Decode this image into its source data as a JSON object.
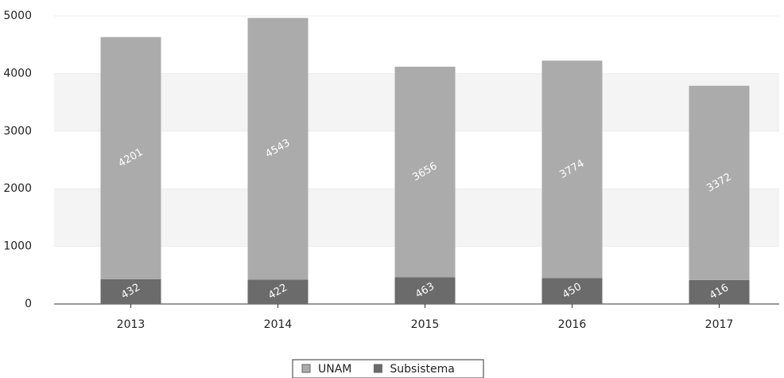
{
  "chart_data": {
    "type": "stacked-bar",
    "categories": [
      "2013",
      "2014",
      "2015",
      "2016",
      "2017"
    ],
    "series": [
      {
        "name": "Subsistema",
        "color": "#6b6b6b",
        "values": [
          432,
          422,
          463,
          450,
          416
        ]
      },
      {
        "name": "UNAM",
        "color": "#ababab",
        "values": [
          4201,
          4543,
          3656,
          3774,
          3372
        ]
      }
    ],
    "legend_order": [
      "UNAM",
      "Subsistema"
    ],
    "ylim": [
      0,
      5000
    ],
    "yticks": [
      0,
      1000,
      2000,
      3000,
      4000,
      5000
    ],
    "grid": true,
    "legend": "bottom"
  }
}
